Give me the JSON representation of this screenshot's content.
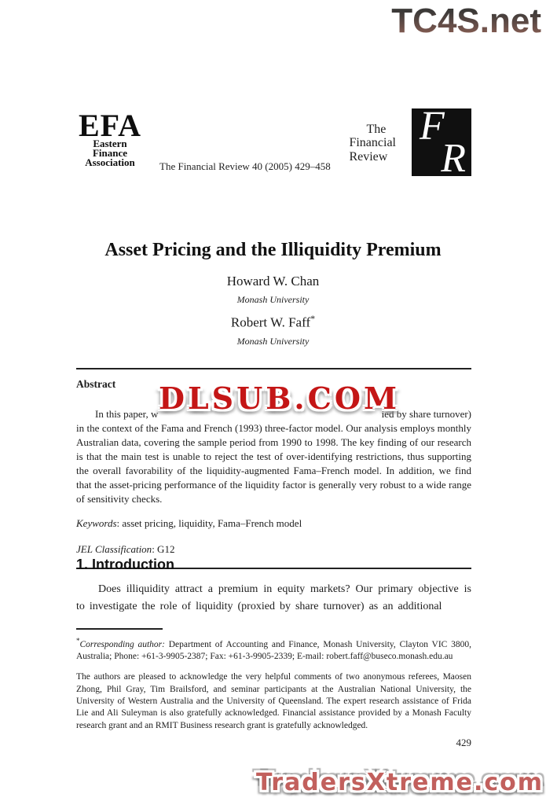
{
  "watermarks": {
    "top_text": "TC4S.net",
    "middle_text": "DLSUB.COM",
    "bottom_text": "TradersXtreme.com",
    "top_gradient": [
      "#3c3a38",
      "#a06a5c"
    ],
    "middle_color": "#c41616",
    "bottom_color": "#c2605d"
  },
  "header": {
    "efa": {
      "acronym": "EFA",
      "name_lines": [
        "Eastern",
        "Finance",
        "Association"
      ]
    },
    "citation": "The Financial Review 40 (2005) 429–458",
    "journal_name_lines": [
      "The",
      "Financial",
      "Review"
    ],
    "logo": {
      "letter_f": "F",
      "letter_r": "R",
      "box_color": "#101010"
    }
  },
  "article": {
    "title": "Asset Pricing and the Illiquidity Premium",
    "authors": [
      {
        "name": "Howard W. Chan",
        "note": "",
        "affiliation": "Monash University"
      },
      {
        "name": "Robert W. Faff",
        "note": "*",
        "affiliation": "Monash University"
      }
    ]
  },
  "abstract": {
    "heading": "Abstract",
    "line1_start": "In this paper, w",
    "line1_end": "ied by share turnover)",
    "body": "in the context of the Fama and French (1993) three-factor model. Our analysis employs monthly Australian data, covering the sample period from 1990 to 1998. The key finding of our research is that the main test is unable to reject the test of over-identifying restrictions, thus supporting the overall favorability of the liquidity-augmented Fama–French model. In addition, we find that the asset-pricing performance of the liquidity factor is generally very robust to a wide range of sensitivity checks.",
    "keywords_label": "Keywords",
    "keywords_value": ": asset pricing, liquidity, Fama–French model",
    "jel_label": "JEL Classification",
    "jel_value": ": G12"
  },
  "introduction": {
    "heading": "1. Introduction",
    "paragraph": "Does illiquidity attract a premium in equity markets? Our primary objective is to investigate the role of liquidity (proxied by share turnover) as an additional"
  },
  "footnotes": {
    "asterisk": "*",
    "corresponding_label": "Corresponding author:",
    "corresponding_text": " Department of Accounting and Finance, Monash University, Clayton VIC 3800, Australia; Phone: +61-3-9905-2387; Fax: +61-3-9905-2339; E-mail: robert.faff@buseco.monash.edu.au",
    "acknowledgment": "The authors are pleased to acknowledge the very helpful comments of two anonymous referees, Maosen Zhong, Phil Gray, Tim Brailsford, and seminar participants at the Australian National University, the University of Western Australia and the University of Queensland. The expert research assistance of Frida Lie and Ali Suleyman is also gratefully acknowledged. Financial assistance provided by a Monash Faculty research grant and an RMIT Business research grant is gratefully acknowledged."
  },
  "page_number": "429"
}
